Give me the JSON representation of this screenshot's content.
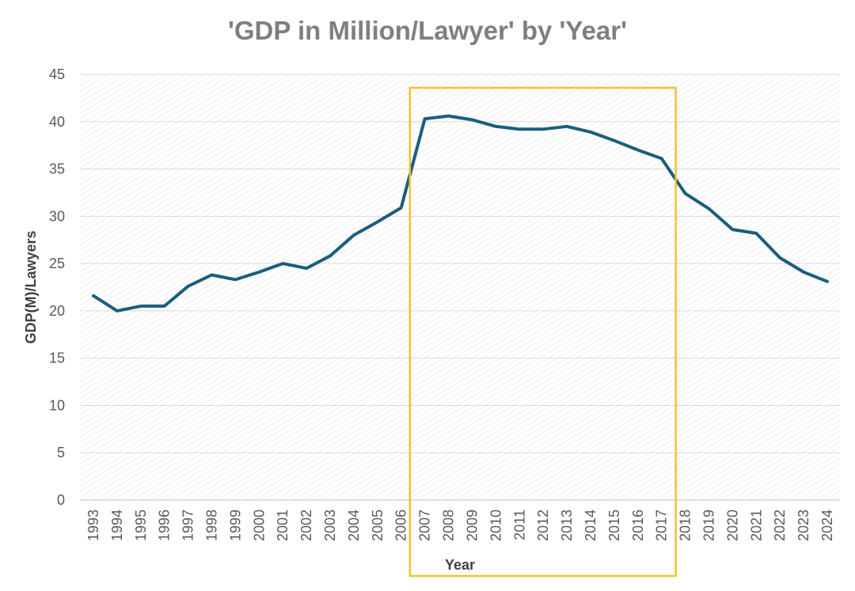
{
  "chart_data": {
    "type": "line",
    "title": "'GDP in Million/Lawyer' by 'Year'",
    "xlabel": "Year",
    "ylabel": "GDP(M)/Lawyers",
    "ylim": [
      0,
      45
    ],
    "yticks": [
      0,
      5,
      10,
      15,
      20,
      25,
      30,
      35,
      40,
      45
    ],
    "grid": true,
    "legend": "none",
    "categories": [
      "1993",
      "1994",
      "1995",
      "1996",
      "1997",
      "1998",
      "1999",
      "2000",
      "2001",
      "2002",
      "2003",
      "2004",
      "2005",
      "2006",
      "2007",
      "2008",
      "2009",
      "2010",
      "2011",
      "2012",
      "2013",
      "2014",
      "2015",
      "2016",
      "2017",
      "2018",
      "2019",
      "2020",
      "2021",
      "2022",
      "2023",
      "2024"
    ],
    "series": [
      {
        "values": [
          21.6,
          20.0,
          20.5,
          20.5,
          22.6,
          23.8,
          23.3,
          24.1,
          25.0,
          24.5,
          25.8,
          28.0,
          29.4,
          30.9,
          40.3,
          40.6,
          40.2,
          39.5,
          39.2,
          39.2,
          39.5,
          38.9,
          38.0,
          37.0,
          36.1,
          32.4,
          30.8,
          28.6,
          28.2,
          25.6,
          24.1,
          23.1
        ]
      }
    ],
    "highlight": {
      "from": "2007",
      "to": "2017"
    },
    "colors": {
      "line": "#1a5e7e",
      "highlight": "#f2c12e",
      "grid": "#d9d9d9",
      "axis": "#bfbfbf"
    }
  }
}
